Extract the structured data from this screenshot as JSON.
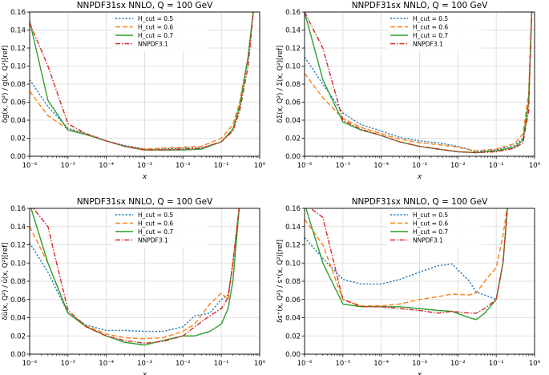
{
  "colors": {
    "hcut05": "#1f77b4",
    "hcut06": "#ff7f0e",
    "hcut07": "#2ca02c",
    "nnpdf31": "#d62728",
    "grid": "#d9d9d9"
  },
  "chart_data": [
    {
      "type": "line",
      "title": "NNPDF31sx NNLO, Q = 100 GeV",
      "xlabel": "x",
      "ylabel": "δg(x, Q²) / g(x, Q²)[ref]",
      "x_scale": "log",
      "xlim": [
        1e-06,
        1
      ],
      "ylim": [
        0,
        0.16
      ],
      "grid": true,
      "legend_position": "top-center",
      "x_ticks": [
        "10⁻⁶",
        "10⁻⁵",
        "10⁻⁴",
        "10⁻³",
        "10⁻²",
        "10⁻¹",
        "10⁰"
      ],
      "y_ticks": [
        "0.00",
        "0.02",
        "0.04",
        "0.06",
        "0.08",
        "0.10",
        "0.12",
        "0.14",
        "0.16"
      ],
      "x": [
        1e-06,
        3e-06,
        1e-05,
        3e-05,
        0.0001,
        0.0003,
        0.001,
        0.003,
        0.01,
        0.03,
        0.1,
        0.2,
        0.3,
        0.5,
        0.7
      ],
      "series": [
        {
          "name": "H_cut = 0.5",
          "style": "dotted",
          "color_key": "hcut05",
          "values": [
            0.085,
            0.055,
            0.031,
            0.025,
            0.017,
            0.012,
            0.008,
            0.008,
            0.009,
            0.009,
            0.016,
            0.03,
            0.055,
            0.11,
            0.165
          ]
        },
        {
          "name": "H_cut = 0.6",
          "style": "dashed",
          "color_key": "hcut06",
          "values": [
            0.072,
            0.045,
            0.03,
            0.024,
            0.017,
            0.011,
            0.008,
            0.009,
            0.01,
            0.011,
            0.02,
            0.035,
            0.06,
            0.11,
            0.165
          ]
        },
        {
          "name": "H_cut = 0.7",
          "style": "solid",
          "color_key": "hcut07",
          "values": [
            0.15,
            0.062,
            0.029,
            0.024,
            0.017,
            0.011,
            0.007,
            0.007,
            0.007,
            0.008,
            0.016,
            0.03,
            0.055,
            0.11,
            0.165
          ]
        },
        {
          "name": "NNPDF3.1",
          "style": "dashdot",
          "color_key": "nnpdf31",
          "values": [
            0.148,
            0.1,
            0.036,
            0.025,
            0.017,
            0.011,
            0.007,
            0.007,
            0.008,
            0.009,
            0.016,
            0.028,
            0.05,
            0.1,
            0.165
          ]
        }
      ]
    },
    {
      "type": "line",
      "title": "NNPDF31sx NNLO, Q = 100 GeV",
      "xlabel": "x",
      "ylabel": "δΣ(x, Q²) / Σ(x, Q²)[ref]",
      "x_scale": "log",
      "xlim": [
        1e-06,
        1
      ],
      "ylim": [
        0,
        0.16
      ],
      "grid": true,
      "legend_position": "top-center",
      "x_ticks": [
        "10⁻⁶",
        "10⁻⁵",
        "10⁻⁴",
        "10⁻³",
        "10⁻²",
        "10⁻¹",
        "10⁰"
      ],
      "y_ticks": [
        "0.00",
        "0.02",
        "0.04",
        "0.06",
        "0.08",
        "0.10",
        "0.12",
        "0.14",
        "0.16"
      ],
      "x": [
        1e-06,
        3e-06,
        1e-05,
        3e-05,
        0.0001,
        0.0003,
        0.001,
        0.003,
        0.01,
        0.03,
        0.1,
        0.3,
        0.5,
        0.7,
        0.85
      ],
      "series": [
        {
          "name": "H_cut = 0.5",
          "style": "dotted",
          "color_key": "hcut05",
          "values": [
            0.11,
            0.08,
            0.048,
            0.035,
            0.028,
            0.021,
            0.017,
            0.015,
            0.011,
            0.005,
            0.007,
            0.012,
            0.02,
            0.06,
            0.165
          ]
        },
        {
          "name": "H_cut = 0.6",
          "style": "dashed",
          "color_key": "hcut06",
          "values": [
            0.092,
            0.065,
            0.042,
            0.032,
            0.025,
            0.019,
            0.015,
            0.013,
            0.01,
            0.006,
            0.008,
            0.014,
            0.025,
            0.07,
            0.165
          ]
        },
        {
          "name": "H_cut = 0.7",
          "style": "solid",
          "color_key": "hcut07",
          "values": [
            0.16,
            0.085,
            0.038,
            0.029,
            0.023,
            0.016,
            0.011,
            0.008,
            0.005,
            0.004,
            0.006,
            0.01,
            0.018,
            0.06,
            0.165
          ]
        },
        {
          "name": "NNPDF3.1",
          "style": "dashdot",
          "color_key": "nnpdf31",
          "values": [
            0.16,
            0.12,
            0.04,
            0.03,
            0.023,
            0.016,
            0.011,
            0.008,
            0.005,
            0.004,
            0.005,
            0.009,
            0.015,
            0.05,
            0.165
          ]
        }
      ]
    },
    {
      "type": "line",
      "title": "NNPDF31sx NNLO, Q = 100 GeV",
      "xlabel": "x",
      "ylabel": "δū(x, Q²) / ū(x, Q²)[ref]",
      "x_scale": "log",
      "xlim": [
        1e-06,
        1
      ],
      "ylim": [
        0,
        0.16
      ],
      "grid": true,
      "legend_position": "top-center",
      "x_ticks": [
        "10⁻⁶",
        "10⁻⁵",
        "10⁻⁴",
        "10⁻³",
        "10⁻²",
        "10⁻¹",
        "10⁰"
      ],
      "y_ticks": [
        "0.00",
        "0.02",
        "0.04",
        "0.06",
        "0.08",
        "0.10",
        "0.12",
        "0.14",
        "0.16"
      ],
      "x": [
        1e-06,
        3e-06,
        1e-05,
        3e-05,
        0.0001,
        0.0003,
        0.001,
        0.003,
        0.01,
        0.02,
        0.05,
        0.1,
        0.15,
        0.2,
        0.3
      ],
      "series": [
        {
          "name": "H_cut = 0.5",
          "style": "dotted",
          "color_key": "hcut05",
          "values": [
            0.122,
            0.09,
            0.045,
            0.032,
            0.026,
            0.026,
            0.025,
            0.025,
            0.03,
            0.042,
            0.045,
            0.06,
            0.065,
            0.1,
            0.165
          ]
        },
        {
          "name": "H_cut = 0.6",
          "style": "dashed",
          "color_key": "hcut06",
          "values": [
            0.14,
            0.1,
            0.045,
            0.031,
            0.022,
            0.018,
            0.017,
            0.018,
            0.025,
            0.033,
            0.055,
            0.067,
            0.06,
            0.1,
            0.165
          ]
        },
        {
          "name": "H_cut = 0.7",
          "style": "solid",
          "color_key": "hcut07",
          "values": [
            0.165,
            0.1,
            0.045,
            0.03,
            0.02,
            0.013,
            0.01,
            0.015,
            0.02,
            0.02,
            0.025,
            0.033,
            0.05,
            0.08,
            0.165
          ]
        },
        {
          "name": "NNPDF3.1",
          "style": "dashdot",
          "color_key": "nnpdf31",
          "values": [
            0.165,
            0.14,
            0.048,
            0.03,
            0.02,
            0.015,
            0.012,
            0.014,
            0.02,
            0.03,
            0.042,
            0.05,
            0.062,
            0.1,
            0.165
          ]
        }
      ]
    },
    {
      "type": "line",
      "title": "NNPDF31sx NNLO, Q = 100 GeV",
      "xlabel": "x",
      "ylabel": "δs⁺(x, Q²) / s⁺(x, Q²)[ref]",
      "x_scale": "log",
      "xlim": [
        1e-06,
        1
      ],
      "ylim": [
        0,
        0.16
      ],
      "grid": true,
      "legend_position": "top-center",
      "x_ticks": [
        "10⁻⁶",
        "10⁻⁵",
        "10⁻⁴",
        "10⁻³",
        "10⁻²",
        "10⁻¹",
        "10⁰"
      ],
      "y_ticks": [
        "0.00",
        "0.02",
        "0.04",
        "0.06",
        "0.08",
        "0.10",
        "0.12",
        "0.14",
        "0.16"
      ],
      "x": [
        1e-06,
        3e-06,
        1e-05,
        3e-05,
        0.0001,
        0.0003,
        0.001,
        0.003,
        0.007,
        0.02,
        0.03,
        0.05,
        0.1,
        0.15,
        0.2
      ],
      "series": [
        {
          "name": "H_cut = 0.5",
          "style": "dotted",
          "color_key": "hcut05",
          "values": [
            0.128,
            0.105,
            0.082,
            0.077,
            0.077,
            0.082,
            0.09,
            0.097,
            0.099,
            0.08,
            0.068,
            0.065,
            0.06,
            0.1,
            0.165
          ]
        },
        {
          "name": "H_cut = 0.6",
          "style": "dashed",
          "color_key": "hcut06",
          "values": [
            0.148,
            0.12,
            0.06,
            0.053,
            0.053,
            0.055,
            0.06,
            0.063,
            0.066,
            0.065,
            0.067,
            0.08,
            0.095,
            0.13,
            0.165
          ]
        },
        {
          "name": "H_cut = 0.7",
          "style": "solid",
          "color_key": "hcut07",
          "values": [
            0.165,
            0.1,
            0.055,
            0.052,
            0.052,
            0.052,
            0.05,
            0.048,
            0.047,
            0.04,
            0.038,
            0.045,
            0.06,
            0.1,
            0.165
          ]
        },
        {
          "name": "NNPDF3.1",
          "style": "dashdot",
          "color_key": "nnpdf31",
          "values": [
            0.165,
            0.15,
            0.06,
            0.052,
            0.052,
            0.05,
            0.048,
            0.045,
            0.047,
            0.045,
            0.045,
            0.05,
            0.06,
            0.1,
            0.165
          ]
        }
      ]
    }
  ]
}
